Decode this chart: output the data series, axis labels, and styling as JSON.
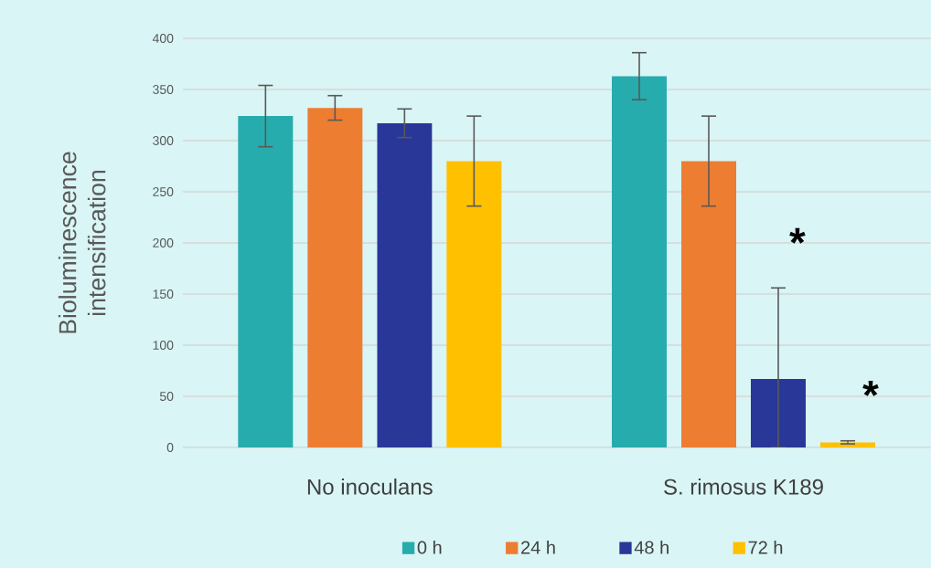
{
  "chart_data": {
    "type": "bar",
    "ylabel": "Bioluminescence intensification",
    "categories": [
      "No inoculans",
      "S. rimosus K189"
    ],
    "series": [
      {
        "name": "0 h",
        "color": "#27acad",
        "values": [
          324,
          363
        ],
        "errors": [
          30,
          23
        ]
      },
      {
        "name": "24 h",
        "color": "#ed7d31",
        "values": [
          332,
          280
        ],
        "errors": [
          12,
          44
        ]
      },
      {
        "name": "48 h",
        "color": "#283798",
        "values": [
          317,
          67
        ],
        "errors": [
          14,
          [
            0,
            156
          ]
        ]
      },
      {
        "name": "72 h",
        "color": "#ffc000",
        "values": [
          280,
          5
        ],
        "errors": [
          44,
          1.5
        ]
      }
    ],
    "ylim": [
      0,
      400
    ],
    "yticks": [
      0,
      50,
      100,
      150,
      200,
      250,
      300,
      350,
      400
    ],
    "grid": "y",
    "legend": "bottom",
    "annotations": [
      "*",
      "*"
    ]
  }
}
